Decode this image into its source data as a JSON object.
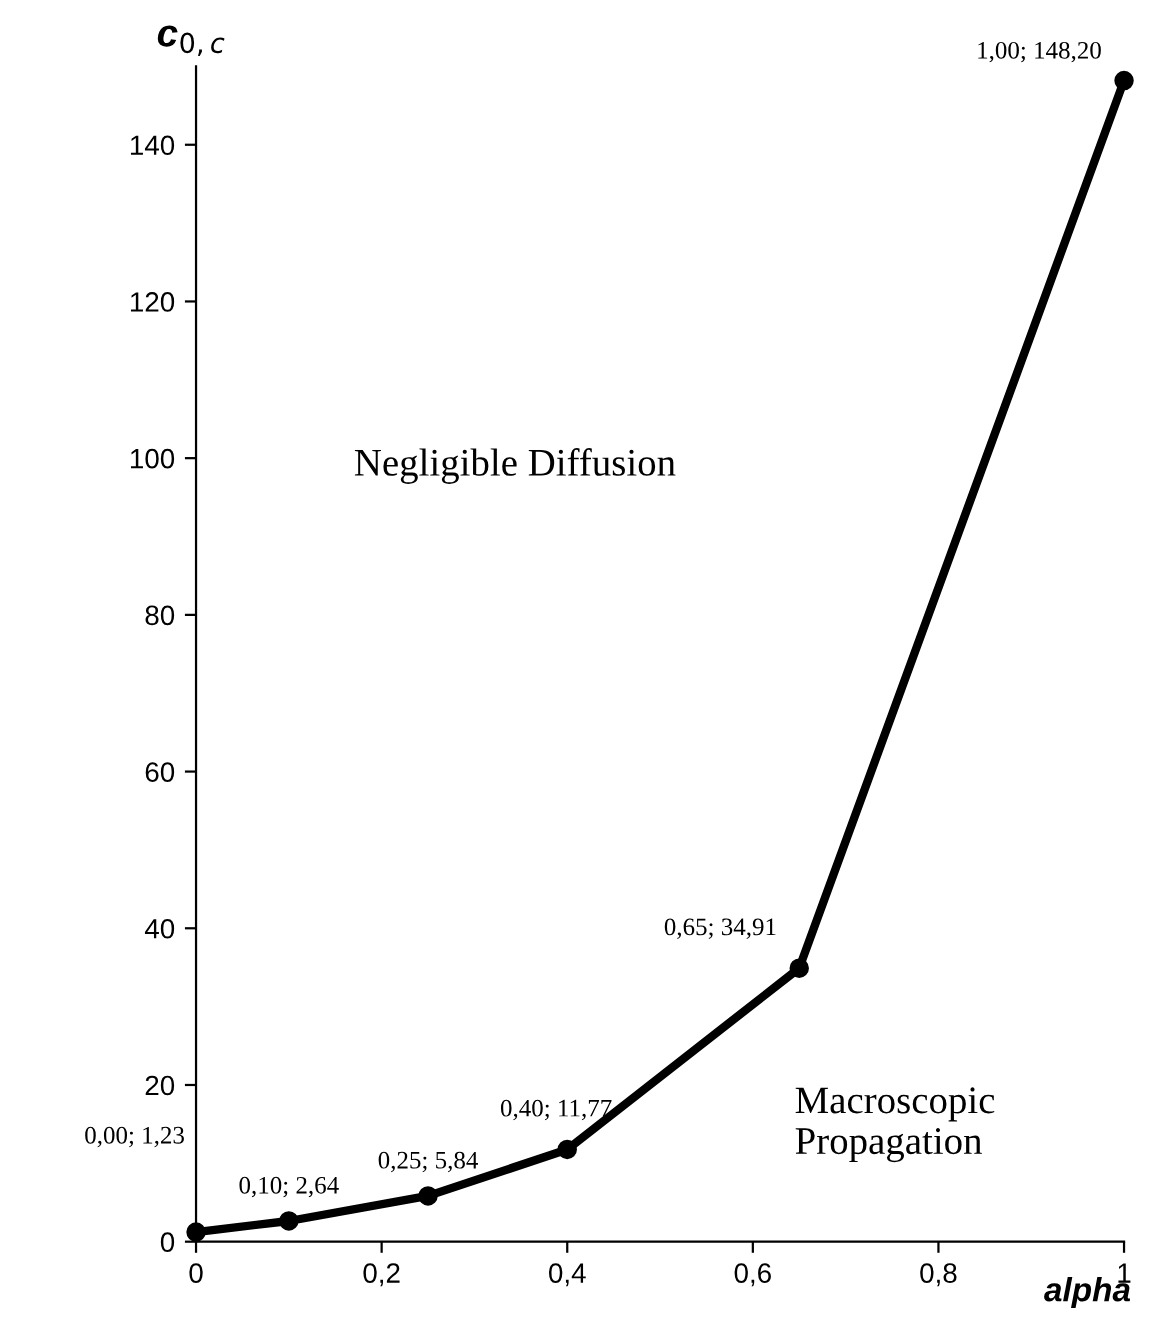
{
  "chart_data": {
    "type": "line",
    "xlabel": "alpha",
    "ylabel": "c$_{0,c}$",
    "x": [
      0,
      0.1,
      0.25,
      0.4,
      0.65,
      1
    ],
    "series": [
      {
        "color": "#000000",
        "values": [
          1.23,
          2.64,
          5.84,
          11.77,
          34.91,
          148.2
        ],
        "value_labels": [
          "0,00; 1,23",
          "0,10; 2,64",
          "0,25; 5,84",
          "0,40; 11,77",
          "0,65; 34,91",
          "1,00; 148,20"
        ]
      }
    ],
    "marker": "circle",
    "line_style": "solid",
    "grid": false,
    "legend": false,
    "xlim": [
      0,
      1
    ],
    "ylim": [
      0,
      150
    ],
    "xticks": [
      0,
      {
        "value": 0.2,
        "label": "0,2"
      },
      {
        "value": 0.4,
        "label": "0,4"
      },
      {
        "value": 0.6,
        "label": "0,6"
      },
      {
        "value": 0.8,
        "label": "0,8"
      },
      1
    ],
    "yticks": [
      0,
      20,
      40,
      60,
      80,
      100,
      120,
      140
    ],
    "annotations": [
      "Negligible Diffusion",
      "Macroscopic Propagation"
    ]
  }
}
